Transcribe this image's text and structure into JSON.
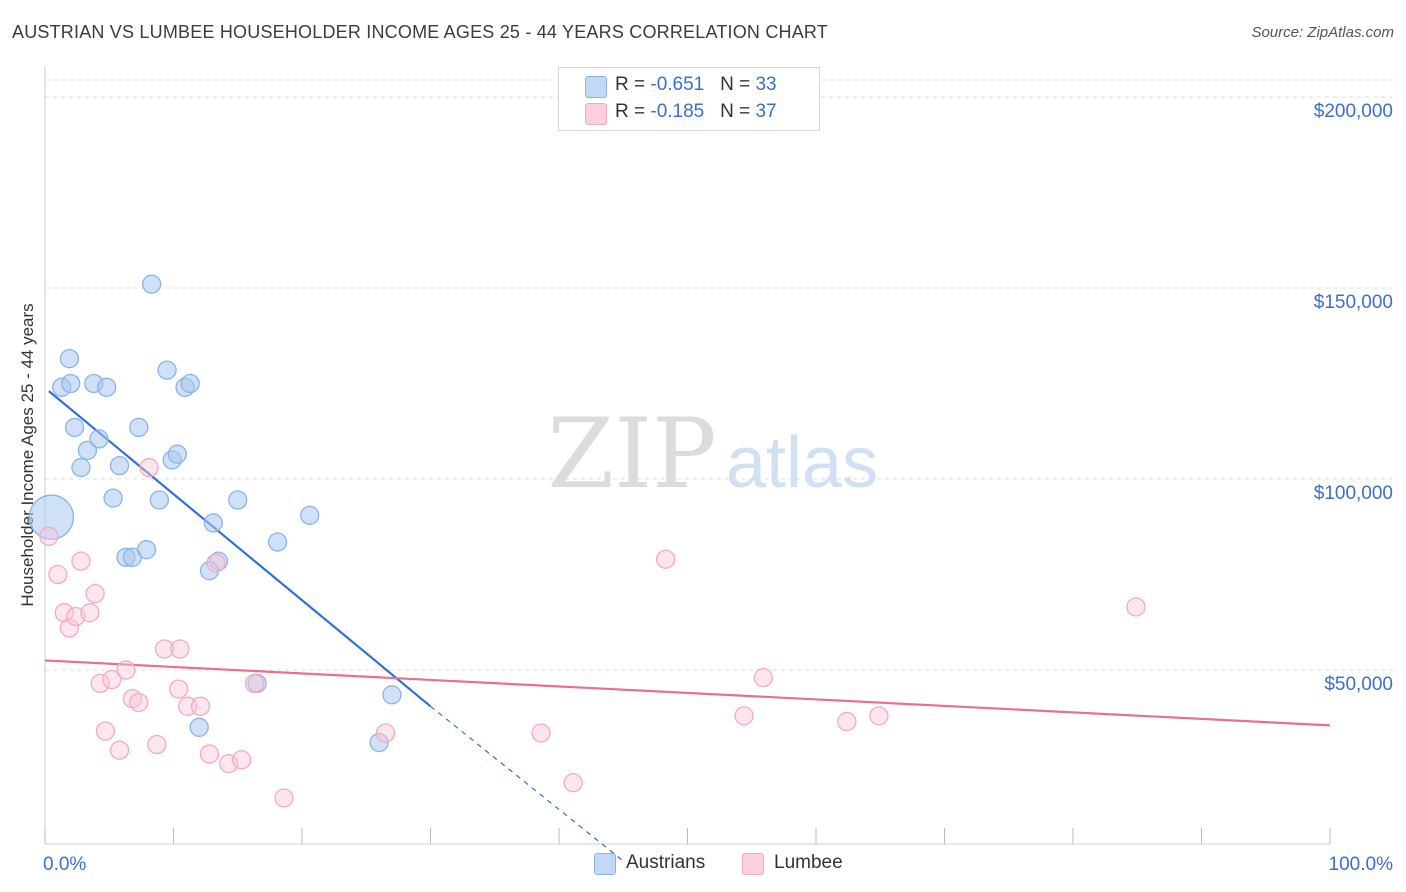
{
  "title": "AUSTRIAN VS LUMBEE HOUSEHOLDER INCOME AGES 25 - 44 YEARS CORRELATION CHART",
  "source": "Source: ZipAtlas.com",
  "watermark": {
    "zip": "ZIP",
    "atlas": "atlas"
  },
  "legend": {
    "austrians": {
      "r_label": "R = ",
      "r_value": "-0.651",
      "n_label": "N = ",
      "n_value": "33"
    },
    "lumbee": {
      "r_label": "R = ",
      "r_value": "-0.185",
      "n_label": "N = ",
      "n_value": "37"
    }
  },
  "chart_data": {
    "type": "scatter",
    "title": "AUSTRIAN VS LUMBEE HOUSEHOLDER INCOME AGES 25 - 44 YEARS CORRELATION CHART",
    "xlabel": "",
    "ylabel": "Householder Income Ages 25 - 44 years",
    "xlim": [
      0,
      100
    ],
    "ylim": [
      0,
      200000
    ],
    "x_tick_labels": [
      "0.0%",
      "100.0%"
    ],
    "y_ticks": [
      50000,
      100000,
      150000,
      200000
    ],
    "y_tick_labels": [
      "$50,000",
      "$100,000",
      "$150,000",
      "$200,000"
    ],
    "grid": true,
    "legend_position": "top-center",
    "series": [
      {
        "name": "Austrians",
        "color": "#8ab4e8",
        "line_color": "#2f6fd6",
        "points": [
          [
            0.5,
            90000
          ],
          [
            1.3,
            124000
          ],
          [
            1.9,
            131500
          ],
          [
            2.0,
            125000
          ],
          [
            2.3,
            113500
          ],
          [
            2.8,
            103000
          ],
          [
            3.3,
            107500
          ],
          [
            3.8,
            125000
          ],
          [
            4.2,
            110500
          ],
          [
            4.8,
            124000
          ],
          [
            5.3,
            95000
          ],
          [
            5.8,
            103500
          ],
          [
            6.3,
            79500
          ],
          [
            6.8,
            79500
          ],
          [
            7.3,
            113500
          ],
          [
            7.9,
            81500
          ],
          [
            8.3,
            151000
          ],
          [
            8.9,
            94500
          ],
          [
            9.5,
            128500
          ],
          [
            9.9,
            105000
          ],
          [
            10.3,
            106500
          ],
          [
            10.9,
            124000
          ],
          [
            11.3,
            125000
          ],
          [
            12.0,
            35000
          ],
          [
            13.1,
            88500
          ],
          [
            13.5,
            78500
          ],
          [
            12.8,
            76000
          ],
          [
            15.0,
            94500
          ],
          [
            16.5,
            46500
          ],
          [
            18.1,
            83500
          ],
          [
            20.6,
            90500
          ],
          [
            26.0,
            31000
          ],
          [
            27.0,
            43500
          ]
        ],
        "trend": {
          "x": [
            0.3,
            30.0
          ],
          "y": [
            123000,
            40500
          ]
        },
        "trend_dashed": {
          "x": [
            30.0,
            45.0
          ],
          "y": [
            40500,
            0
          ]
        }
      },
      {
        "name": "Lumbee",
        "color": "#f5a9bf",
        "line_color": "#e8708f",
        "points": [
          [
            0.3,
            85000
          ],
          [
            1.0,
            75000
          ],
          [
            1.5,
            65000
          ],
          [
            1.9,
            61000
          ],
          [
            2.4,
            64000
          ],
          [
            2.8,
            78500
          ],
          [
            3.5,
            65000
          ],
          [
            3.9,
            70000
          ],
          [
            4.3,
            46500
          ],
          [
            4.7,
            34000
          ],
          [
            5.2,
            47500
          ],
          [
            5.8,
            29000
          ],
          [
            6.3,
            50000
          ],
          [
            6.8,
            42500
          ],
          [
            7.3,
            41500
          ],
          [
            8.1,
            103000
          ],
          [
            8.7,
            30500
          ],
          [
            9.3,
            55500
          ],
          [
            10.4,
            45000
          ],
          [
            10.5,
            55500
          ],
          [
            11.1,
            40500
          ],
          [
            12.1,
            40500
          ],
          [
            12.8,
            28000
          ],
          [
            13.3,
            78000
          ],
          [
            14.3,
            25500
          ],
          [
            15.3,
            26500
          ],
          [
            16.3,
            46500
          ],
          [
            18.6,
            16500
          ],
          [
            26.5,
            33500
          ],
          [
            38.6,
            33500
          ],
          [
            41.1,
            20500
          ],
          [
            48.3,
            79000
          ],
          [
            54.4,
            38000
          ],
          [
            55.9,
            48000
          ],
          [
            62.4,
            36500
          ],
          [
            64.9,
            38000
          ],
          [
            84.9,
            66500
          ]
        ],
        "trend": {
          "x": [
            0,
            100
          ],
          "y": [
            52500,
            35500
          ]
        }
      }
    ]
  }
}
